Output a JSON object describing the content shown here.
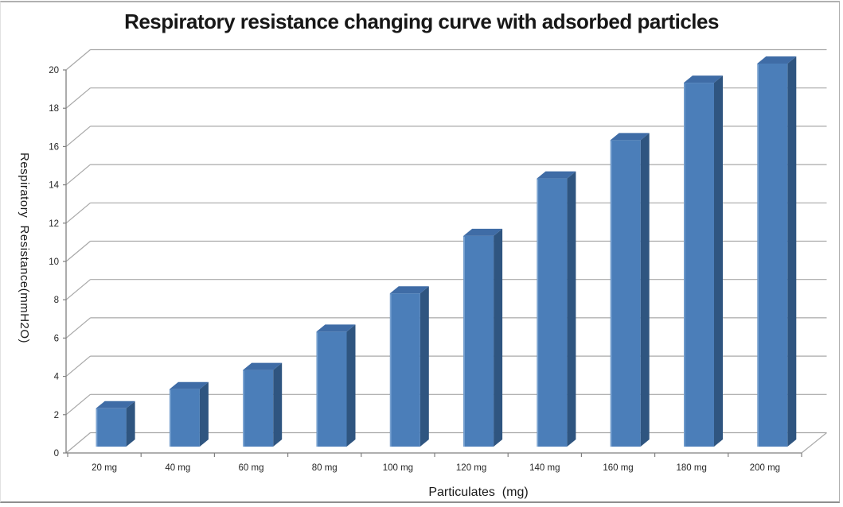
{
  "frame": {
    "background": "#ffffff",
    "border_color": "#b0b0b0",
    "bottom_border_color": "#8f8f8f"
  },
  "chart_data": {
    "type": "bar",
    "projection": "3d",
    "title": "Respiratory resistance changing curve with adsorbed particles",
    "xlabel": "Particulates  (mg)",
    "ylabel": "Respiratory  Resistance(mmH2O)",
    "categories": [
      "20 mg",
      "40 mg",
      "60 mg",
      "80 mg",
      "100 mg",
      "120 mg",
      "140 mg",
      "160 mg",
      "180 mg",
      "200 mg"
    ],
    "values": [
      2,
      3,
      4,
      6,
      8,
      11,
      14,
      16,
      19,
      20
    ],
    "ylim": [
      0,
      20
    ],
    "y_ticks": [
      0,
      2,
      4,
      6,
      8,
      10,
      12,
      14,
      16,
      18,
      20
    ],
    "grid": true,
    "legend": "none",
    "colors": {
      "bar_front": "#4b7eb9",
      "bar_side": "#2f5580",
      "bar_top": "#3f6ca6",
      "bar_highlight": "#7aa3d1",
      "gridline": "#a8a8a8",
      "axis_line": "#7f7f7f",
      "tick_label": "#262626",
      "axis_title": "#1a1a1a",
      "title": "#171717"
    }
  }
}
